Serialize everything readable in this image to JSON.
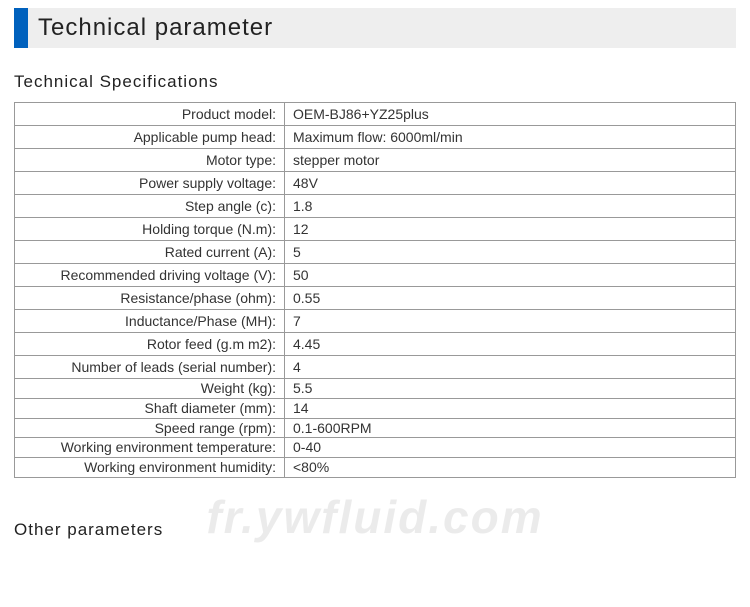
{
  "colors": {
    "accent": "#0061bd",
    "header_bg": "#eeeeee",
    "border": "#999999",
    "text": "#333333"
  },
  "header": {
    "title": "Technical parameter"
  },
  "sections": {
    "spec_title": "Technical Specifications",
    "other_title": "Other parameters"
  },
  "watermark": "fr.ywfluid.com",
  "specs": [
    {
      "label": "Product model:",
      "value": "OEM-BJ86+YZ25plus"
    },
    {
      "label": "Applicable pump head:",
      "value": "Maximum flow: 6000ml/min"
    },
    {
      "label": "Motor type:",
      "value": "stepper motor"
    },
    {
      "label": "Power supply voltage:",
      "value": "48V"
    },
    {
      "label": "Step angle (c):",
      "value": "1.8"
    },
    {
      "label": "Holding torque (N.m):",
      "value": "12"
    },
    {
      "label": "Rated current (A):",
      "value": "5"
    },
    {
      "label": "Recommended driving voltage (V):",
      "value": "50"
    },
    {
      "label": "Resistance/phase (ohm):",
      "value": "0.55"
    },
    {
      "label": "Inductance/Phase (MH):",
      "value": "7"
    },
    {
      "label": "Rotor feed (g.m m2):",
      "value": "4.45"
    },
    {
      "label": "Number of leads (serial number):",
      "value": "4"
    },
    {
      "label": "Weight (kg):",
      "value": "5.5"
    },
    {
      "label": "Shaft diameter (mm):",
      "value": "14"
    },
    {
      "label": "Speed range (rpm):",
      "value": "0.1-600RPM"
    },
    {
      "label": "Working environment temperature:",
      "value": "0-40"
    },
    {
      "label": "Working environment humidity:",
      "value": "<80%"
    }
  ],
  "tight_from_index": 12
}
